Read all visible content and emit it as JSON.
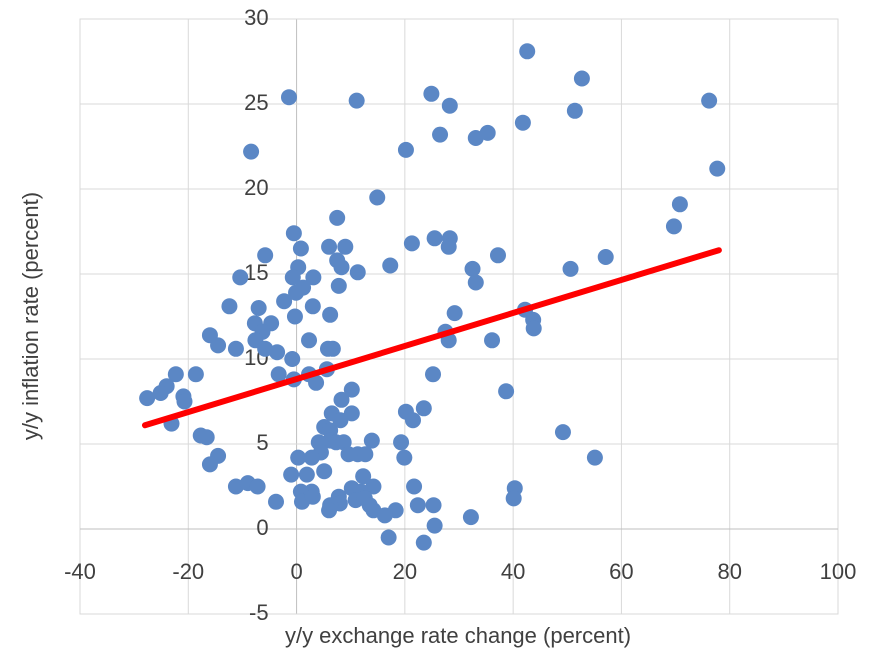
{
  "chart_data": {
    "type": "scatter",
    "x_label": "y/y exchange rate change (percent)",
    "y_label": "y/y inflation rate (percent)",
    "xlim": [
      -40,
      100
    ],
    "xticks": [
      -40,
      -20,
      0,
      20,
      40,
      60,
      80,
      100
    ],
    "ylim": [
      -5,
      30
    ],
    "yticks": [
      -5,
      0,
      5,
      10,
      15,
      20,
      25,
      30
    ],
    "grid": true,
    "series": [
      {
        "color": "#5b87c5",
        "x": [
          -1.4,
          11.1,
          24.9,
          28.3,
          42.6,
          52.7,
          76.2,
          77.7,
          70.8,
          69.7,
          57.1,
          50.6,
          -8.4,
          20.2,
          26.5,
          33.1,
          35.3,
          41.8,
          51.4,
          14.9,
          7.5,
          -0.5,
          0.8,
          -5.8,
          6.0,
          9.0,
          21.3,
          25.5,
          28.3,
          28.1,
          37.2,
          17.3,
          32.5,
          33.1,
          0.3,
          -0.7,
          3.1,
          8.3,
          7.5,
          11.3,
          7.8,
          -10.4,
          -0.1,
          1.2,
          -2.3,
          3.0,
          -12.4,
          -7.0,
          6.2,
          -0.3,
          29.2,
          42.2,
          43.7,
          43.8,
          27.5,
          28.1,
          36.1,
          -7.7,
          -4.7,
          -6.3,
          -7.6,
          2.3,
          -16.0,
          -14.5,
          -11.2,
          -5.8,
          -3.6,
          -0.8,
          5.8,
          6.7,
          5.6,
          2.3,
          3.6,
          -3.3,
          -0.5,
          25.2,
          -22.3,
          -18.6,
          -24.0,
          -25.1,
          -27.6,
          -20.9,
          -20.7,
          10.2,
          38.7,
          8.3,
          -23.1,
          6.5,
          10.2,
          20.2,
          21.5,
          23.5,
          5.1,
          8.1,
          6.2,
          -17.7,
          -16.6,
          49.2,
          13.9,
          19.3,
          4.1,
          6.2,
          7.3,
          8.7,
          4.5,
          9.6,
          11.3,
          12.7,
          0.3,
          2.8,
          19.9,
          -14.5,
          -16.0,
          55.1,
          5.1,
          -1.0,
          1.9,
          12.3,
          -11.2,
          -9.0,
          -7.2,
          10.2,
          14.2,
          21.7,
          40.3,
          0.8,
          2.8,
          11.9,
          7.8,
          -3.8,
          1.0,
          10.9,
          12.6,
          40.1,
          3.0,
          22.4,
          25.3,
          8.0,
          6.2,
          14.2,
          18.3,
          13.5,
          6.0,
          16.3,
          32.2,
          25.5,
          17.0,
          23.5
        ],
        "values": [
          25.4,
          25.2,
          25.6,
          24.9,
          28.1,
          26.5,
          25.2,
          21.2,
          19.1,
          17.8,
          16.0,
          15.3,
          22.2,
          22.3,
          23.2,
          23.0,
          23.3,
          23.9,
          24.6,
          19.5,
          18.3,
          17.4,
          16.5,
          16.1,
          16.6,
          16.6,
          16.8,
          17.1,
          17.1,
          16.6,
          16.1,
          15.5,
          15.3,
          14.5,
          15.4,
          14.8,
          14.8,
          15.4,
          15.8,
          15.1,
          14.3,
          14.8,
          13.9,
          14.2,
          13.4,
          13.1,
          13.1,
          13.0,
          12.6,
          12.5,
          12.7,
          12.9,
          12.3,
          11.8,
          11.6,
          11.1,
          11.1,
          12.1,
          12.1,
          11.6,
          11.1,
          11.1,
          11.4,
          10.8,
          10.6,
          10.6,
          10.4,
          10.0,
          10.6,
          10.6,
          9.4,
          9.1,
          8.6,
          9.1,
          8.8,
          9.1,
          9.1,
          9.1,
          8.4,
          8.0,
          7.7,
          7.8,
          7.5,
          8.2,
          8.1,
          7.6,
          6.2,
          6.8,
          6.8,
          6.9,
          6.4,
          7.1,
          6.0,
          6.4,
          5.8,
          5.5,
          5.4,
          5.7,
          5.2,
          5.1,
          5.1,
          5.2,
          5.1,
          5.1,
          4.5,
          4.4,
          4.4,
          4.4,
          4.2,
          4.2,
          4.2,
          4.3,
          3.8,
          4.2,
          3.4,
          3.2,
          3.2,
          3.1,
          2.5,
          2.7,
          2.5,
          2.4,
          2.5,
          2.5,
          2.4,
          2.2,
          2.2,
          2.2,
          1.9,
          1.6,
          1.6,
          1.7,
          1.8,
          1.8,
          1.9,
          1.4,
          1.4,
          1.5,
          1.4,
          1.1,
          1.1,
          1.4,
          1.1,
          0.8,
          0.7,
          0.2,
          -0.5,
          -0.8
        ]
      }
    ],
    "trendline": {
      "color": "#ff0000",
      "x": [
        -28,
        78
      ],
      "values": [
        6.1,
        16.4
      ]
    }
  }
}
